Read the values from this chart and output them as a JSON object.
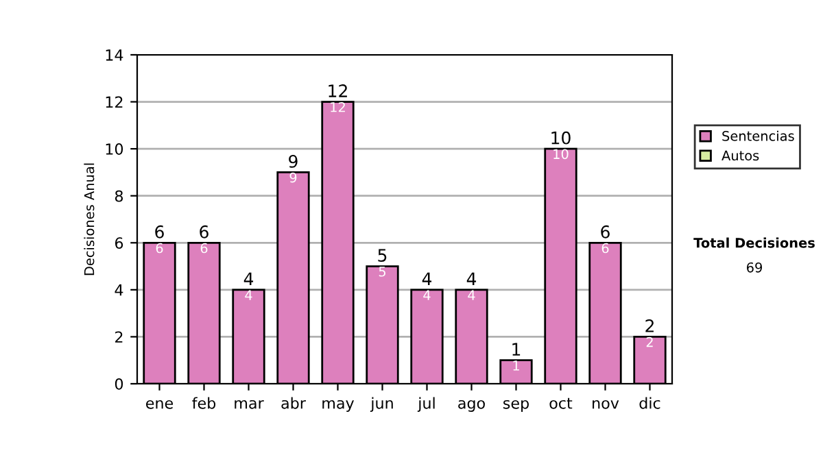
{
  "chart_data": {
    "type": "bar",
    "stacked": true,
    "ylabel": "Decisiones Anual",
    "categories": [
      "ene",
      "feb",
      "mar",
      "abr",
      "may",
      "jun",
      "jul",
      "ago",
      "sep",
      "oct",
      "nov",
      "dic"
    ],
    "series": [
      {
        "name": "Sentencias",
        "color": "#dd80bd",
        "values": [
          6,
          6,
          4,
          9,
          12,
          5,
          4,
          4,
          1,
          10,
          6,
          2
        ],
        "value_labels": [
          "6",
          "6",
          "4",
          "9",
          "12",
          "5",
          "4",
          "4",
          "1",
          "10",
          "6",
          "2"
        ]
      },
      {
        "name": "Autos",
        "color": "#d6eba0",
        "values": [
          0,
          0,
          0,
          0,
          0,
          0,
          0,
          0,
          0,
          0,
          0,
          0
        ]
      }
    ],
    "totals": [
      "6",
      "6",
      "4",
      "9",
      "12",
      "5",
      "4",
      "4",
      "1",
      "10",
      "6",
      "2"
    ],
    "ylim": [
      0,
      14
    ],
    "yticks": [
      0,
      2,
      4,
      6,
      8,
      10,
      12,
      14
    ],
    "grid": "y",
    "legend": "right",
    "annotations": [
      "Total Decisiones",
      "69"
    ]
  }
}
